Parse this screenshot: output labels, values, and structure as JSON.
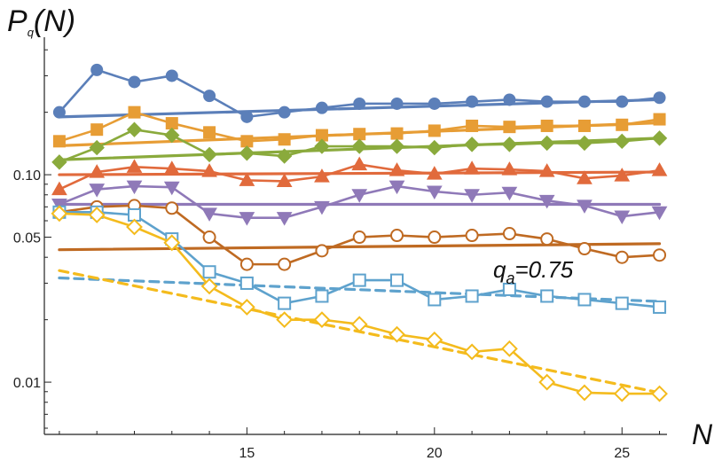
{
  "chart_data": {
    "type": "line",
    "y_scale": "log",
    "x_label": "N",
    "y_label": {
      "main": "P",
      "sub": "q",
      "arg": "(N)"
    },
    "x_ticks": [
      15,
      20,
      25
    ],
    "y_ticks": [
      0.01,
      0.05,
      0.1
    ],
    "y_tick_labels": [
      "0.01",
      "0.05",
      "0.10"
    ],
    "xlim": [
      9.6,
      26.2
    ],
    "ylim": [
      0.0056,
      0.46
    ],
    "annotation": {
      "text_main": "q",
      "text_sub": "a",
      "text_rest": "=0.75"
    },
    "series": [
      {
        "color": "#5b7fb9",
        "marker": "circle-filled",
        "x": [
          10,
          11,
          12,
          13,
          14,
          15,
          16,
          17,
          18,
          19,
          20,
          21,
          22,
          23,
          24,
          25,
          26
        ],
        "y": [
          0.2,
          0.32,
          0.28,
          0.3,
          0.24,
          0.19,
          0.2,
          0.21,
          0.22,
          0.22,
          0.22,
          0.225,
          0.23,
          0.225,
          0.225,
          0.225,
          0.235
        ],
        "fit": {
          "x": [
            10,
            26
          ],
          "y": [
            0.19,
            0.23
          ],
          "dashed": false
        }
      },
      {
        "color": "#e79d35",
        "marker": "square-filled",
        "x": [
          10,
          11,
          12,
          13,
          14,
          15,
          16,
          17,
          18,
          19,
          20,
          21,
          22,
          23,
          24,
          25,
          26
        ],
        "y": [
          0.145,
          0.165,
          0.2,
          0.177,
          0.16,
          0.145,
          0.148,
          0.155,
          0.157,
          0.158,
          0.163,
          0.172,
          0.17,
          0.172,
          0.172,
          0.174,
          0.185
        ],
        "fit": {
          "x": [
            10,
            26
          ],
          "y": [
            0.138,
            0.178
          ],
          "dashed": false
        }
      },
      {
        "color": "#8aaa3c",
        "marker": "diamond-filled",
        "x": [
          10,
          11,
          12,
          13,
          14,
          15,
          16,
          17,
          18,
          19,
          20,
          21,
          22,
          23,
          24,
          25,
          26
        ],
        "y": [
          0.115,
          0.135,
          0.165,
          0.155,
          0.125,
          0.127,
          0.123,
          0.137,
          0.137,
          0.137,
          0.135,
          0.14,
          0.14,
          0.142,
          0.142,
          0.145,
          0.15
        ],
        "fit": {
          "x": [
            10,
            26
          ],
          "y": [
            0.118,
            0.15
          ],
          "dashed": false
        }
      },
      {
        "color": "#e16a3c",
        "marker": "triangle-up-filled",
        "x": [
          10,
          11,
          12,
          13,
          14,
          15,
          16,
          17,
          18,
          19,
          20,
          21,
          22,
          23,
          24,
          25,
          26
        ],
        "y": [
          0.085,
          0.103,
          0.109,
          0.107,
          0.104,
          0.094,
          0.093,
          0.098,
          0.112,
          0.105,
          0.101,
          0.107,
          0.106,
          0.104,
          0.096,
          0.099,
          0.105
        ],
        "fit": {
          "x": [
            10,
            26
          ],
          "y": [
            0.1,
            0.103
          ],
          "dashed": false
        }
      },
      {
        "color": "#8f79b8",
        "marker": "triangle-down-filled",
        "x": [
          10,
          11,
          12,
          13,
          14,
          15,
          16,
          17,
          18,
          19,
          20,
          21,
          22,
          23,
          24,
          25,
          26
        ],
        "y": [
          0.072,
          0.085,
          0.088,
          0.087,
          0.065,
          0.062,
          0.062,
          0.07,
          0.08,
          0.088,
          0.083,
          0.08,
          0.082,
          0.075,
          0.071,
          0.063,
          0.066
        ],
        "fit": {
          "x": [
            10,
            26
          ],
          "y": [
            0.072,
            0.072
          ],
          "dashed": false
        }
      },
      {
        "color": "#bf6a22",
        "marker": "circle-open",
        "x": [
          10,
          11,
          12,
          13,
          14,
          15,
          16,
          17,
          18,
          19,
          20,
          21,
          22,
          23,
          24,
          25,
          26
        ],
        "y": [
          0.066,
          0.07,
          0.071,
          0.069,
          0.05,
          0.037,
          0.037,
          0.043,
          0.05,
          0.051,
          0.05,
          0.051,
          0.052,
          0.049,
          0.044,
          0.04,
          0.041
        ],
        "fit": {
          "x": [
            10,
            26
          ],
          "y": [
            0.0435,
            0.0465
          ],
          "dashed": false
        }
      },
      {
        "color": "#5ea2cd",
        "marker": "square-open",
        "x": [
          10,
          11,
          12,
          13,
          14,
          15,
          16,
          17,
          18,
          19,
          20,
          21,
          22,
          23,
          24,
          25,
          26
        ],
        "y": [
          0.066,
          0.066,
          0.064,
          0.049,
          0.034,
          0.03,
          0.024,
          0.026,
          0.031,
          0.031,
          0.025,
          0.026,
          0.028,
          0.026,
          0.025,
          0.024,
          0.023
        ],
        "fit": {
          "x": [
            10,
            26
          ],
          "y": [
            0.0318,
            0.0245
          ],
          "dashed": true
        }
      },
      {
        "color": "#f4bb1d",
        "marker": "diamond-open",
        "x": [
          10,
          11,
          12,
          13,
          14,
          15,
          16,
          17,
          18,
          19,
          20,
          21,
          22,
          23,
          24,
          25,
          26
        ],
        "y": [
          0.065,
          0.064,
          0.056,
          0.047,
          0.029,
          0.023,
          0.02,
          0.02,
          0.019,
          0.017,
          0.016,
          0.014,
          0.0145,
          0.01,
          0.0089,
          0.0088,
          0.0088
        ],
        "fit": {
          "x": [
            10,
            26
          ],
          "y": [
            0.0345,
            0.0089
          ],
          "dashed": true
        }
      }
    ]
  }
}
